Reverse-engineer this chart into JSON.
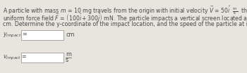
{
  "bg_color": "#e8e4de",
  "text_color": "#4a4a4a",
  "line1": "A particle with mass $m$ = 10 mg travels from the origin with initial velocity $\\vec{V}$ = 50$\\hat{i}$  $\\frac{\\mathrm{m}}{\\mathrm{s}}$  through a",
  "line2": "uniform force field $\\vec{F}$ = $\\left(100\\hat{i} + 300\\hat{j}\\right)$ mN. The particle impacts a vertical screen located at $x$ = 10",
  "line3": "cm. Determine the y-coordinate of the impact location, and the speed of the particle at impact.",
  "label1": "$y_{impact}$ =",
  "unit1": "cm",
  "label2": "$v_{impact}$ =",
  "unit2_num": "m",
  "unit2_den": "s",
  "font_size_text": 5.6,
  "font_size_labels": 5.8,
  "font_size_units": 5.8
}
